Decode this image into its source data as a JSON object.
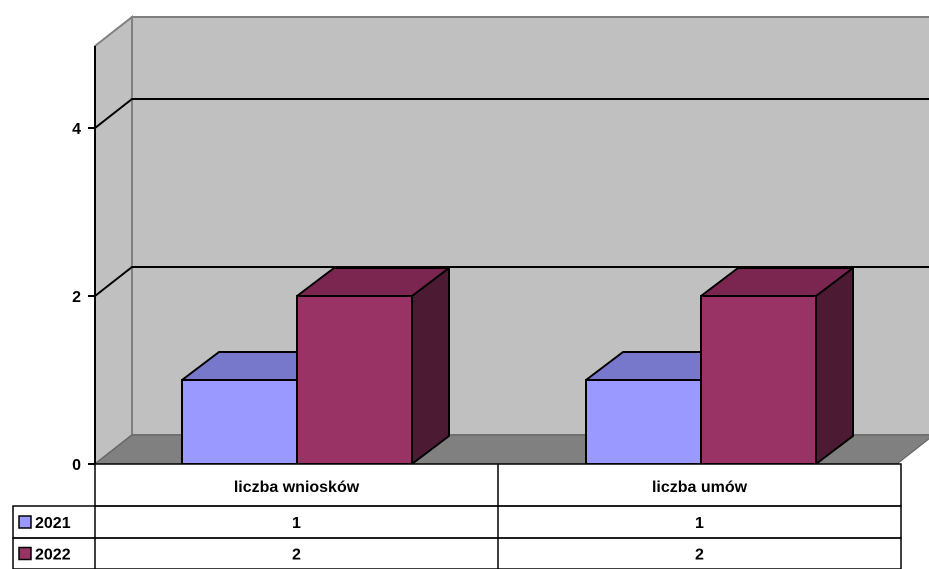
{
  "chart_data": {
    "type": "bar",
    "categories": [
      "liczba wniosków",
      "liczba umów"
    ],
    "series": [
      {
        "name": "2021",
        "values": [
          1,
          1
        ],
        "color": "#9999ff",
        "top_color": "#7777cc",
        "side_color": "#6e6ec4"
      },
      {
        "name": "2022",
        "values": [
          2,
          2
        ],
        "color": "#993366",
        "top_color": "#7a2650",
        "side_color": "#4d1a33"
      }
    ],
    "ylim": [
      0,
      5
    ],
    "yticks": [
      0,
      2,
      4
    ],
    "grid": true,
    "legend": "data-table",
    "data_table": true,
    "wall_color": "#c0c0c0",
    "floor_color": "#808080"
  }
}
